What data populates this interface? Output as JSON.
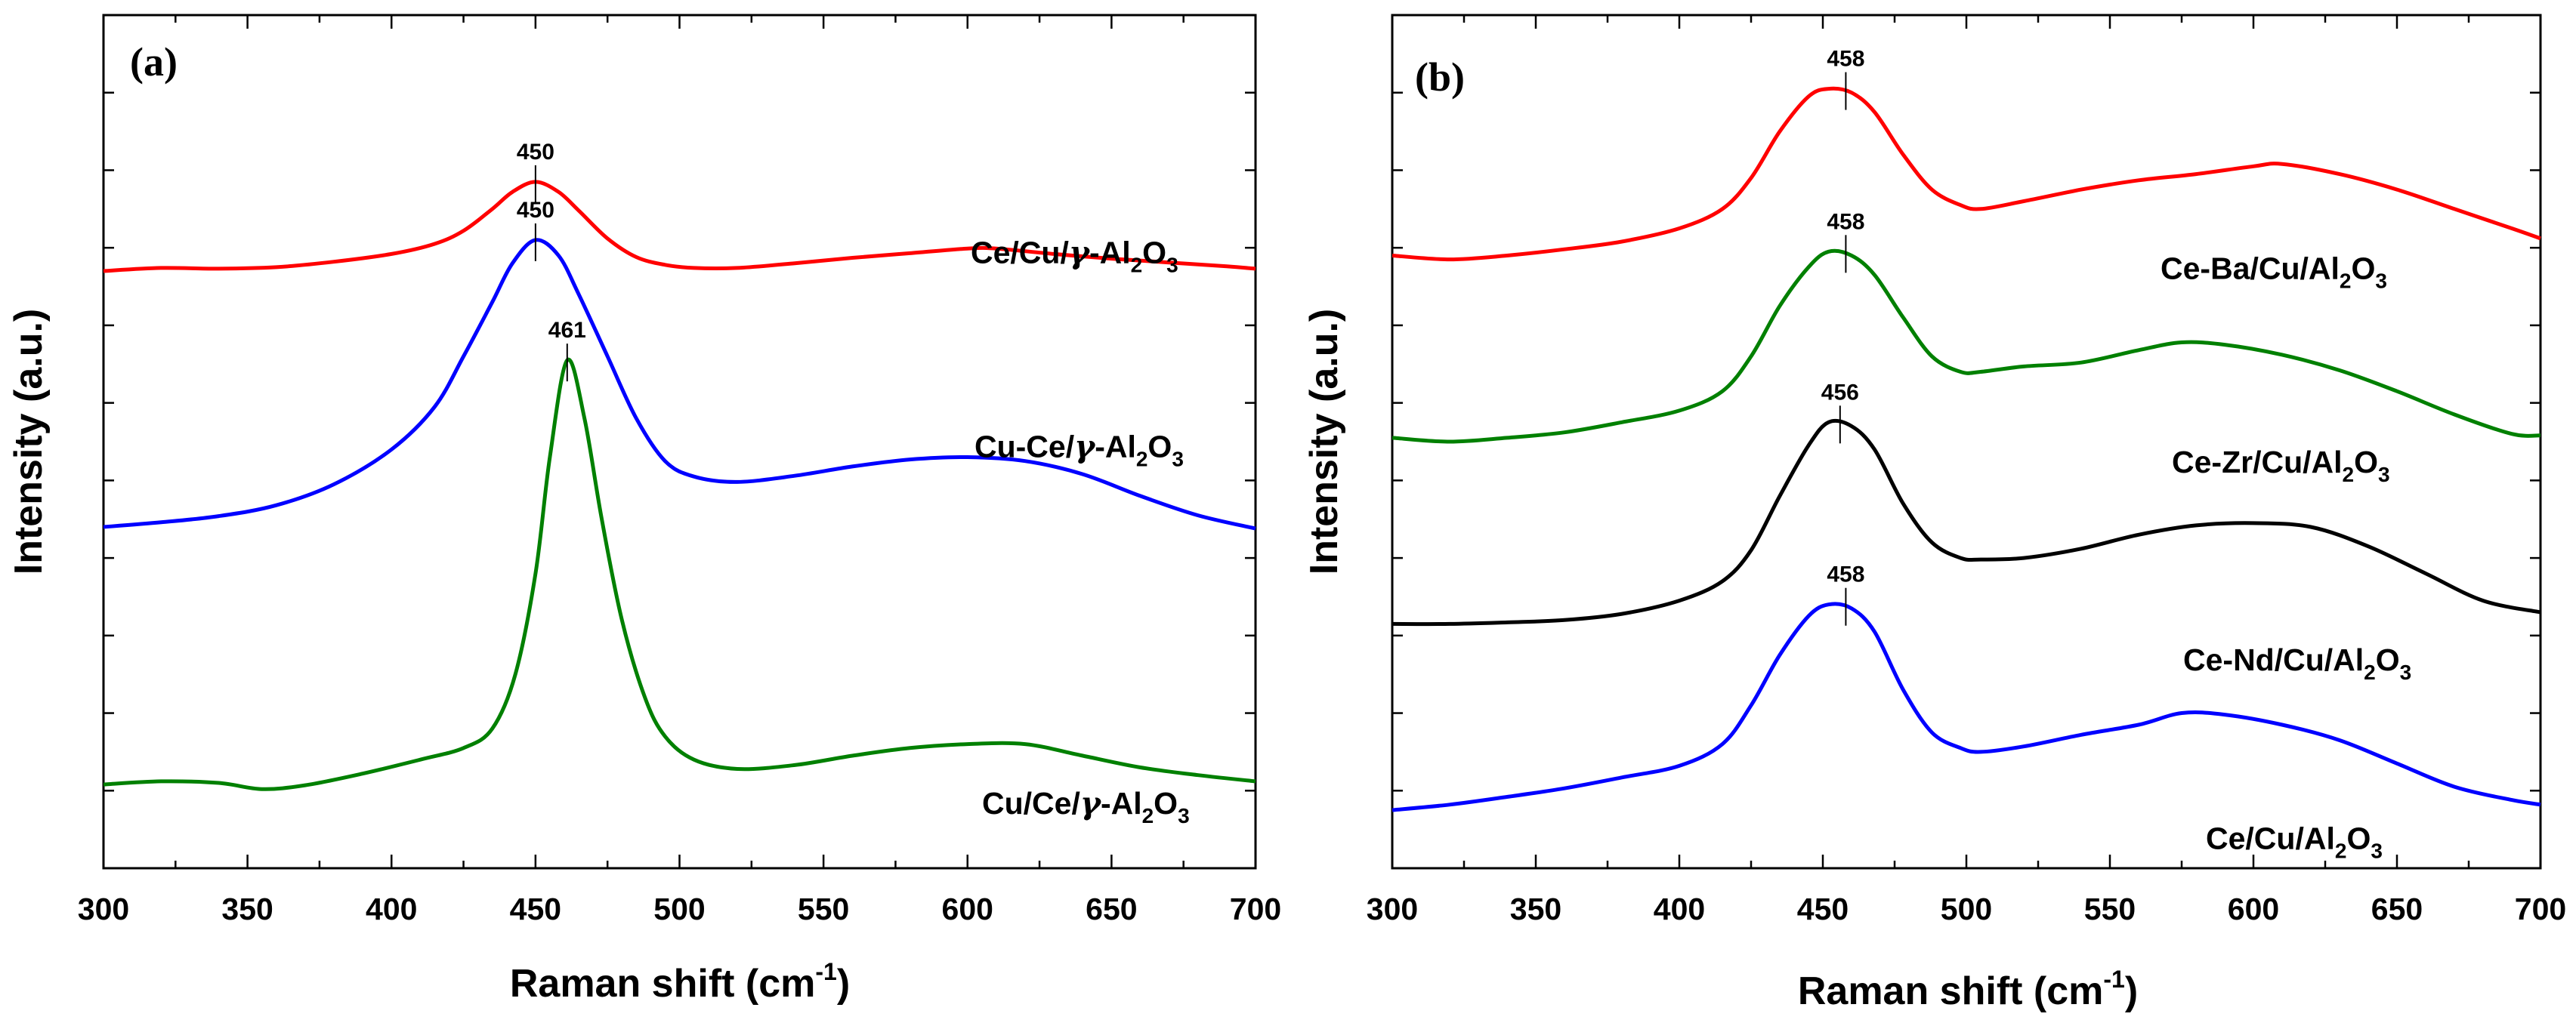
{
  "chart_data": [
    {
      "type": "line",
      "panel_label": "(a)",
      "xlabel": "Raman shift (cm",
      "xlabel_sup": "-1",
      "xlabel_end": ")",
      "ylabel": "Intensity (a.u.)",
      "xlim": [
        300,
        700
      ],
      "ylim": [
        0,
        11
      ],
      "x_ticks": [
        300,
        350,
        400,
        450,
        500,
        550,
        600,
        650,
        700
      ],
      "x_tick_labels": [
        "300",
        "350",
        "400",
        "450",
        "500",
        "550",
        "600",
        "650",
        "700"
      ],
      "series": [
        {
          "name_parts": [
            "Ce/Cu/",
            "γ",
            "-Al",
            "2",
            "O",
            "3"
          ],
          "color": "#ff0000",
          "peak_label": "450",
          "peak_x": 450,
          "peak_y": 8.85,
          "label_y": 7.8,
          "points": [
            [
              300,
              7.7
            ],
            [
              320,
              7.74
            ],
            [
              340,
              7.73
            ],
            [
              360,
              7.75
            ],
            [
              380,
              7.82
            ],
            [
              400,
              7.92
            ],
            [
              415,
              8.05
            ],
            [
              425,
              8.22
            ],
            [
              435,
              8.5
            ],
            [
              442,
              8.72
            ],
            [
              450,
              8.85
            ],
            [
              458,
              8.72
            ],
            [
              465,
              8.48
            ],
            [
              475,
              8.12
            ],
            [
              485,
              7.88
            ],
            [
              495,
              7.78
            ],
            [
              505,
              7.74
            ],
            [
              520,
              7.74
            ],
            [
              540,
              7.8
            ],
            [
              560,
              7.87
            ],
            [
              580,
              7.93
            ],
            [
              600,
              7.99
            ],
            [
              610,
              7.99
            ],
            [
              630,
              7.92
            ],
            [
              650,
              7.86
            ],
            [
              670,
              7.81
            ],
            [
              690,
              7.76
            ],
            [
              700,
              7.73
            ]
          ]
        },
        {
          "name_parts": [
            "Cu-Ce/",
            "γ",
            "-Al",
            "2",
            "O",
            "3"
          ],
          "color": "#0000ff",
          "peak_label": "450",
          "peak_x": 450,
          "peak_y": 8.1,
          "label_y": 5.3,
          "points": [
            [
              300,
              4.4
            ],
            [
              320,
              4.46
            ],
            [
              340,
              4.54
            ],
            [
              360,
              4.68
            ],
            [
              380,
              4.95
            ],
            [
              400,
              5.4
            ],
            [
              415,
              5.95
            ],
            [
              425,
              6.6
            ],
            [
              435,
              7.3
            ],
            [
              442,
              7.8
            ],
            [
              450,
              8.1
            ],
            [
              458,
              7.9
            ],
            [
              465,
              7.4
            ],
            [
              475,
              6.6
            ],
            [
              485,
              5.8
            ],
            [
              495,
              5.25
            ],
            [
              505,
              5.05
            ],
            [
              520,
              4.98
            ],
            [
              540,
              5.06
            ],
            [
              560,
              5.18
            ],
            [
              580,
              5.27
            ],
            [
              600,
              5.3
            ],
            [
              620,
              5.25
            ],
            [
              640,
              5.08
            ],
            [
              660,
              4.8
            ],
            [
              680,
              4.55
            ],
            [
              700,
              4.38
            ]
          ]
        },
        {
          "name_parts": [
            "Cu/Ce/",
            "γ",
            "-Al",
            "2",
            "O",
            "3"
          ],
          "color": "#008000",
          "peak_label": "461",
          "peak_x": 461,
          "peak_y": 6.55,
          "label_y": 0.7,
          "points": [
            [
              300,
              1.08
            ],
            [
              320,
              1.12
            ],
            [
              340,
              1.1
            ],
            [
              355,
              1.02
            ],
            [
              370,
              1.07
            ],
            [
              390,
              1.22
            ],
            [
              410,
              1.4
            ],
            [
              425,
              1.55
            ],
            [
              435,
              1.8
            ],
            [
              443,
              2.5
            ],
            [
              450,
              3.8
            ],
            [
              455,
              5.3
            ],
            [
              461,
              6.55
            ],
            [
              467,
              5.8
            ],
            [
              473,
              4.5
            ],
            [
              480,
              3.2
            ],
            [
              488,
              2.2
            ],
            [
              495,
              1.7
            ],
            [
              505,
              1.4
            ],
            [
              520,
              1.28
            ],
            [
              540,
              1.33
            ],
            [
              560,
              1.45
            ],
            [
              580,
              1.55
            ],
            [
              600,
              1.6
            ],
            [
              620,
              1.6
            ],
            [
              640,
              1.45
            ],
            [
              660,
              1.3
            ],
            [
              680,
              1.2
            ],
            [
              700,
              1.12
            ]
          ]
        }
      ]
    },
    {
      "type": "line",
      "panel_label": "(b)",
      "xlabel": "Raman shift (cm",
      "xlabel_sup": "-1",
      "xlabel_end": ")",
      "ylabel": "Intensity (a.u.)",
      "xlim": [
        300,
        700
      ],
      "ylim": [
        0,
        11
      ],
      "x_ticks": [
        300,
        350,
        400,
        450,
        500,
        550,
        600,
        650,
        700
      ],
      "x_tick_labels": [
        "300",
        "350",
        "400",
        "450",
        "500",
        "550",
        "600",
        "650",
        "700"
      ],
      "series": [
        {
          "name_parts": [
            "Ce-Ba/Cu/Al",
            "2",
            "O",
            "3"
          ],
          "color": "#ff0000",
          "peak_label": "458",
          "peak_x": 458,
          "peak_y": 10.05,
          "label_y": 7.6,
          "points": [
            [
              300,
              7.9
            ],
            [
              320,
              7.85
            ],
            [
              340,
              7.9
            ],
            [
              360,
              7.98
            ],
            [
              380,
              8.08
            ],
            [
              400,
              8.25
            ],
            [
              415,
              8.5
            ],
            [
              425,
              8.9
            ],
            [
              435,
              9.5
            ],
            [
              445,
              9.95
            ],
            [
              452,
              10.05
            ],
            [
              460,
              10.0
            ],
            [
              468,
              9.75
            ],
            [
              478,
              9.2
            ],
            [
              488,
              8.75
            ],
            [
              498,
              8.55
            ],
            [
              505,
              8.5
            ],
            [
              520,
              8.6
            ],
            [
              540,
              8.75
            ],
            [
              560,
              8.87
            ],
            [
              580,
              8.95
            ],
            [
              600,
              9.05
            ],
            [
              610,
              9.08
            ],
            [
              630,
              8.95
            ],
            [
              650,
              8.75
            ],
            [
              670,
              8.5
            ],
            [
              690,
              8.25
            ],
            [
              700,
              8.12
            ]
          ]
        },
        {
          "name_parts": [
            "Ce-Zr/Cu/Al",
            "2",
            "O",
            "3"
          ],
          "color": "#008000",
          "peak_label": "458",
          "peak_x": 458,
          "peak_y": 7.95,
          "label_y": 5.1,
          "points": [
            [
              300,
              5.55
            ],
            [
              320,
              5.5
            ],
            [
              340,
              5.55
            ],
            [
              360,
              5.62
            ],
            [
              380,
              5.75
            ],
            [
              400,
              5.9
            ],
            [
              415,
              6.15
            ],
            [
              425,
              6.6
            ],
            [
              435,
              7.25
            ],
            [
              445,
              7.75
            ],
            [
              452,
              7.95
            ],
            [
              460,
              7.9
            ],
            [
              468,
              7.65
            ],
            [
              478,
              7.1
            ],
            [
              488,
              6.6
            ],
            [
              498,
              6.4
            ],
            [
              505,
              6.4
            ],
            [
              520,
              6.47
            ],
            [
              540,
              6.52
            ],
            [
              560,
              6.68
            ],
            [
              575,
              6.78
            ],
            [
              590,
              6.75
            ],
            [
              610,
              6.62
            ],
            [
              630,
              6.42
            ],
            [
              650,
              6.15
            ],
            [
              670,
              5.85
            ],
            [
              690,
              5.6
            ],
            [
              700,
              5.58
            ]
          ]
        },
        {
          "name_parts": [
            "Ce-Nd/Cu/Al",
            "2",
            "O",
            "3"
          ],
          "color": "#000000",
          "peak_label": "456",
          "peak_x": 456,
          "peak_y": 5.75,
          "label_y": 2.55,
          "points": [
            [
              300,
              3.15
            ],
            [
              320,
              3.15
            ],
            [
              340,
              3.17
            ],
            [
              360,
              3.2
            ],
            [
              380,
              3.28
            ],
            [
              400,
              3.45
            ],
            [
              415,
              3.7
            ],
            [
              425,
              4.1
            ],
            [
              435,
              4.8
            ],
            [
              445,
              5.45
            ],
            [
              452,
              5.75
            ],
            [
              460,
              5.7
            ],
            [
              468,
              5.4
            ],
            [
              478,
              4.7
            ],
            [
              488,
              4.2
            ],
            [
              498,
              4.0
            ],
            [
              505,
              3.98
            ],
            [
              520,
              4.0
            ],
            [
              540,
              4.12
            ],
            [
              560,
              4.3
            ],
            [
              580,
              4.42
            ],
            [
              600,
              4.45
            ],
            [
              620,
              4.4
            ],
            [
              640,
              4.15
            ],
            [
              660,
              3.8
            ],
            [
              680,
              3.45
            ],
            [
              700,
              3.3
            ]
          ]
        },
        {
          "name_parts": [
            "Ce/Cu/Al",
            "2",
            "O",
            "3"
          ],
          "color": "#0000ff",
          "peak_label": "458",
          "peak_x": 458,
          "peak_y": 3.4,
          "label_y": 0.25,
          "points": [
            [
              300,
              0.75
            ],
            [
              320,
              0.82
            ],
            [
              340,
              0.92
            ],
            [
              360,
              1.03
            ],
            [
              380,
              1.17
            ],
            [
              400,
              1.32
            ],
            [
              415,
              1.6
            ],
            [
              425,
              2.1
            ],
            [
              435,
              2.75
            ],
            [
              445,
              3.25
            ],
            [
              452,
              3.4
            ],
            [
              460,
              3.35
            ],
            [
              468,
              3.05
            ],
            [
              478,
              2.3
            ],
            [
              488,
              1.75
            ],
            [
              498,
              1.55
            ],
            [
              505,
              1.5
            ],
            [
              520,
              1.57
            ],
            [
              540,
              1.72
            ],
            [
              560,
              1.85
            ],
            [
              575,
              2.0
            ],
            [
              590,
              1.98
            ],
            [
              610,
              1.85
            ],
            [
              630,
              1.65
            ],
            [
              650,
              1.35
            ],
            [
              670,
              1.05
            ],
            [
              690,
              0.88
            ],
            [
              700,
              0.82
            ]
          ]
        }
      ]
    }
  ]
}
